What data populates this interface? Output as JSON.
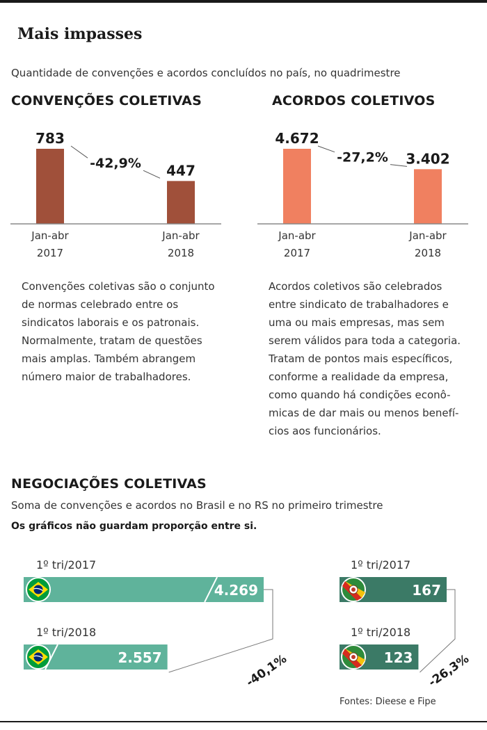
{
  "page": {
    "title": "Mais impasses",
    "subtitle": "Quantidade de convenções e acordos concluídos no país, no quadrimestre",
    "source": "Fontes: Dieese e Fipe"
  },
  "sections": {
    "convencoes": {
      "heading": "CONVENÇÕES COLETIVAS",
      "description": [
        "Convenções coletivas são o conjunto",
        "de normas celebrado entre os",
        "sindicatos laborais e os patronais.",
        "Normalmente, tratam de questões",
        "mais amplas. Também abrangem",
        "número maior de trabalhadores."
      ]
    },
    "acordos": {
      "heading": "ACORDOS COLETIVOS",
      "description": [
        "Acordos coletivos são celebrados",
        "entre sindicato de trabalhadores e",
        "uma ou mais empresas, mas sem",
        "serem válidos para toda a categoria.",
        "Tratam de pontos mais específicos,",
        "conforme a realidade da empresa,",
        "como quando há condições econô-",
        "micas de dar mais ou menos benefí-",
        "cios aos funcionários."
      ]
    },
    "negociacoes": {
      "heading": "NEGOCIAÇÕES COLETIVAS",
      "subtitle": "Soma de convenções e acordos no Brasil e no RS no primeiro trimestre",
      "note": "Os gráficos não guardam proporção entre si."
    }
  },
  "chart_data": [
    {
      "type": "bar",
      "title": "CONVENÇÕES COLETIVAS",
      "categories": [
        "Jan-abr 2017",
        "Jan-abr 2018"
      ],
      "category_lines": [
        [
          "Jan-abr",
          "2017"
        ],
        [
          "Jan-abr",
          "2018"
        ]
      ],
      "values": [
        783,
        447
      ],
      "value_labels": [
        "783",
        "447"
      ],
      "change_label": "-42,9%",
      "color": "#a0503a",
      "ylim": [
        0,
        783
      ],
      "grid": false
    },
    {
      "type": "bar",
      "title": "ACORDOS COLETIVOS",
      "categories": [
        "Jan-abr 2017",
        "Jan-abr 2018"
      ],
      "category_lines": [
        [
          "Jan-abr",
          "2017"
        ],
        [
          "Jan-abr",
          "2018"
        ]
      ],
      "values": [
        4672,
        3402
      ],
      "value_labels": [
        "4.672",
        "3.402"
      ],
      "change_label": "-27,2%",
      "color": "#f08060",
      "ylim": [
        0,
        4672
      ],
      "grid": false
    },
    {
      "type": "bar",
      "orientation": "horizontal",
      "region": "Brasil",
      "icon": "brazil-flag-icon",
      "categories": [
        "1º tri/2017",
        "1º tri/2018"
      ],
      "values": [
        4269,
        2557
      ],
      "value_labels": [
        "4.269",
        "2.557"
      ],
      "change_label": "-40,1%",
      "color": "#5fb39b",
      "grid": false
    },
    {
      "type": "bar",
      "orientation": "horizontal",
      "region": "RS",
      "icon": "rs-flag-icon",
      "categories": [
        "1º tri/2017",
        "1º tri/2018"
      ],
      "values": [
        167,
        123
      ],
      "value_labels": [
        "167",
        "123"
      ],
      "change_label": "-26,3%",
      "color": "#3b7a66",
      "grid": false
    }
  ]
}
